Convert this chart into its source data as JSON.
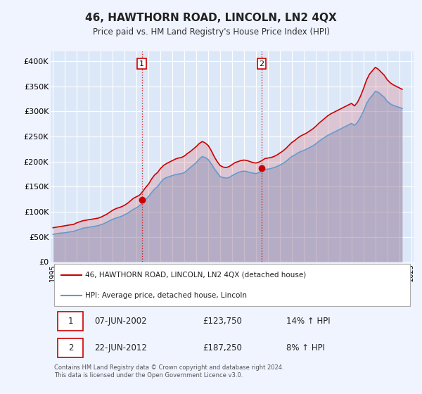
{
  "title": "46, HAWTHORN ROAD, LINCOLN, LN2 4QX",
  "subtitle": "Price paid vs. HM Land Registry's House Price Index (HPI)",
  "ylabel": "",
  "ylim": [
    0,
    420000
  ],
  "yticks": [
    0,
    50000,
    100000,
    150000,
    200000,
    250000,
    300000,
    350000,
    400000
  ],
  "ytick_labels": [
    "£0",
    "£50K",
    "£100K",
    "£150K",
    "£200K",
    "£250K",
    "£300K",
    "£350K",
    "£400K"
  ],
  "background_color": "#f0f4ff",
  "plot_bg_color": "#dce8f8",
  "grid_color": "#ffffff",
  "red_color": "#cc0000",
  "blue_color": "#6699cc",
  "sale1_date": 2002.44,
  "sale1_price": 123750,
  "sale2_date": 2012.47,
  "sale2_price": 187250,
  "legend_label_red": "46, HAWTHORN ROAD, LINCOLN, LN2 4QX (detached house)",
  "legend_label_blue": "HPI: Average price, detached house, Lincoln",
  "annotation1_label": "1",
  "annotation2_label": "2",
  "table_row1": [
    "1",
    "07-JUN-2002",
    "£123,750",
    "14% ↑ HPI"
  ],
  "table_row2": [
    "2",
    "22-JUN-2012",
    "£187,250",
    "8% ↑ HPI"
  ],
  "footer": "Contains HM Land Registry data © Crown copyright and database right 2024.\nThis data is licensed under the Open Government Licence v3.0.",
  "hpi_dates": [
    1995.0,
    1995.25,
    1995.5,
    1995.75,
    1996.0,
    1996.25,
    1996.5,
    1996.75,
    1997.0,
    1997.25,
    1997.5,
    1997.75,
    1998.0,
    1998.25,
    1998.5,
    1998.75,
    1999.0,
    1999.25,
    1999.5,
    1999.75,
    2000.0,
    2000.25,
    2000.5,
    2000.75,
    2001.0,
    2001.25,
    2001.5,
    2001.75,
    2002.0,
    2002.25,
    2002.5,
    2002.75,
    2003.0,
    2003.25,
    2003.5,
    2003.75,
    2004.0,
    2004.25,
    2004.5,
    2004.75,
    2005.0,
    2005.25,
    2005.5,
    2005.75,
    2006.0,
    2006.25,
    2006.5,
    2006.75,
    2007.0,
    2007.25,
    2007.5,
    2007.75,
    2008.0,
    2008.25,
    2008.5,
    2008.75,
    2009.0,
    2009.25,
    2009.5,
    2009.75,
    2010.0,
    2010.25,
    2010.5,
    2010.75,
    2011.0,
    2011.25,
    2011.5,
    2011.75,
    2012.0,
    2012.25,
    2012.5,
    2012.75,
    2013.0,
    2013.25,
    2013.5,
    2013.75,
    2014.0,
    2014.25,
    2014.5,
    2014.75,
    2015.0,
    2015.25,
    2015.5,
    2015.75,
    2016.0,
    2016.25,
    2016.5,
    2016.75,
    2017.0,
    2017.25,
    2017.5,
    2017.75,
    2018.0,
    2018.25,
    2018.5,
    2018.75,
    2019.0,
    2019.25,
    2019.5,
    2019.75,
    2020.0,
    2020.25,
    2020.5,
    2020.75,
    2021.0,
    2021.25,
    2021.5,
    2021.75,
    2022.0,
    2022.25,
    2022.5,
    2022.75,
    2023.0,
    2023.25,
    2023.5,
    2023.75,
    2024.0,
    2024.25
  ],
  "hpi_values": [
    55000,
    56000,
    57000,
    57500,
    58000,
    59000,
    60000,
    61000,
    63000,
    65000,
    67000,
    68000,
    69000,
    70000,
    71000,
    72000,
    74000,
    76000,
    79000,
    82000,
    85000,
    87000,
    89000,
    91000,
    94000,
    97000,
    101000,
    105000,
    108000,
    112000,
    118000,
    124000,
    130000,
    138000,
    145000,
    150000,
    158000,
    165000,
    168000,
    170000,
    172000,
    174000,
    175000,
    176000,
    178000,
    183000,
    188000,
    193000,
    198000,
    205000,
    210000,
    208000,
    204000,
    196000,
    186000,
    178000,
    170000,
    168000,
    167000,
    168000,
    172000,
    175000,
    178000,
    180000,
    181000,
    180000,
    178000,
    177000,
    176000,
    178000,
    181000,
    184000,
    185000,
    186000,
    188000,
    190000,
    193000,
    196000,
    200000,
    205000,
    210000,
    213000,
    217000,
    220000,
    222000,
    225000,
    228000,
    231000,
    235000,
    240000,
    244000,
    248000,
    252000,
    255000,
    258000,
    261000,
    264000,
    267000,
    270000,
    273000,
    276000,
    272000,
    278000,
    288000,
    300000,
    315000,
    325000,
    332000,
    340000,
    338000,
    333000,
    328000,
    320000,
    315000,
    312000,
    310000,
    308000,
    306000
  ],
  "red_dates": [
    1995.0,
    1995.25,
    1995.5,
    1995.75,
    1996.0,
    1996.25,
    1996.5,
    1996.75,
    1997.0,
    1997.25,
    1997.5,
    1997.75,
    1998.0,
    1998.25,
    1998.5,
    1998.75,
    1999.0,
    1999.25,
    1999.5,
    1999.75,
    2000.0,
    2000.25,
    2000.5,
    2000.75,
    2001.0,
    2001.25,
    2001.5,
    2001.75,
    2002.0,
    2002.25,
    2002.5,
    2002.75,
    2003.0,
    2003.25,
    2003.5,
    2003.75,
    2004.0,
    2004.25,
    2004.5,
    2004.75,
    2005.0,
    2005.25,
    2005.5,
    2005.75,
    2006.0,
    2006.25,
    2006.5,
    2006.75,
    2007.0,
    2007.25,
    2007.5,
    2007.75,
    2008.0,
    2008.25,
    2008.5,
    2008.75,
    2009.0,
    2009.25,
    2009.5,
    2009.75,
    2010.0,
    2010.25,
    2010.5,
    2010.75,
    2011.0,
    2011.25,
    2011.5,
    2011.75,
    2012.0,
    2012.25,
    2012.5,
    2012.75,
    2013.0,
    2013.25,
    2013.5,
    2013.75,
    2014.0,
    2014.25,
    2014.5,
    2014.75,
    2015.0,
    2015.25,
    2015.5,
    2015.75,
    2016.0,
    2016.25,
    2016.5,
    2016.75,
    2017.0,
    2017.25,
    2017.5,
    2017.75,
    2018.0,
    2018.25,
    2018.5,
    2018.75,
    2019.0,
    2019.25,
    2019.5,
    2019.75,
    2020.0,
    2020.25,
    2020.5,
    2020.75,
    2021.0,
    2021.25,
    2021.5,
    2021.75,
    2022.0,
    2022.25,
    2022.5,
    2022.75,
    2023.0,
    2023.25,
    2023.5,
    2023.75,
    2024.0,
    2024.25
  ],
  "red_values": [
    68000,
    69000,
    70000,
    71000,
    72000,
    73000,
    74000,
    75000,
    78000,
    80000,
    82000,
    83000,
    84000,
    85000,
    86000,
    87000,
    89000,
    92000,
    95000,
    99000,
    103000,
    106000,
    108000,
    110000,
    113000,
    117000,
    122000,
    127000,
    130000,
    133000,
    140000,
    148000,
    155000,
    165000,
    173000,
    178000,
    186000,
    192000,
    196000,
    199000,
    202000,
    205000,
    207000,
    208000,
    211000,
    216000,
    220000,
    225000,
    230000,
    236000,
    240000,
    237000,
    232000,
    222000,
    210000,
    200000,
    192000,
    189000,
    188000,
    190000,
    194000,
    198000,
    200000,
    202000,
    203000,
    202000,
    200000,
    198000,
    197000,
    199000,
    202000,
    206000,
    207000,
    208000,
    210000,
    213000,
    217000,
    221000,
    226000,
    232000,
    238000,
    242000,
    247000,
    251000,
    254000,
    257000,
    261000,
    265000,
    270000,
    276000,
    281000,
    286000,
    291000,
    295000,
    298000,
    301000,
    304000,
    307000,
    310000,
    313000,
    316000,
    311000,
    318000,
    330000,
    345000,
    362000,
    374000,
    381000,
    388000,
    384000,
    378000,
    372000,
    363000,
    357000,
    353000,
    350000,
    347000,
    344000
  ],
  "xtick_years": [
    1995,
    1996,
    1997,
    1998,
    1999,
    2000,
    2001,
    2002,
    2003,
    2004,
    2005,
    2006,
    2007,
    2008,
    2009,
    2010,
    2011,
    2012,
    2013,
    2014,
    2015,
    2016,
    2017,
    2018,
    2019,
    2020,
    2021,
    2022,
    2023,
    2024,
    2025
  ]
}
